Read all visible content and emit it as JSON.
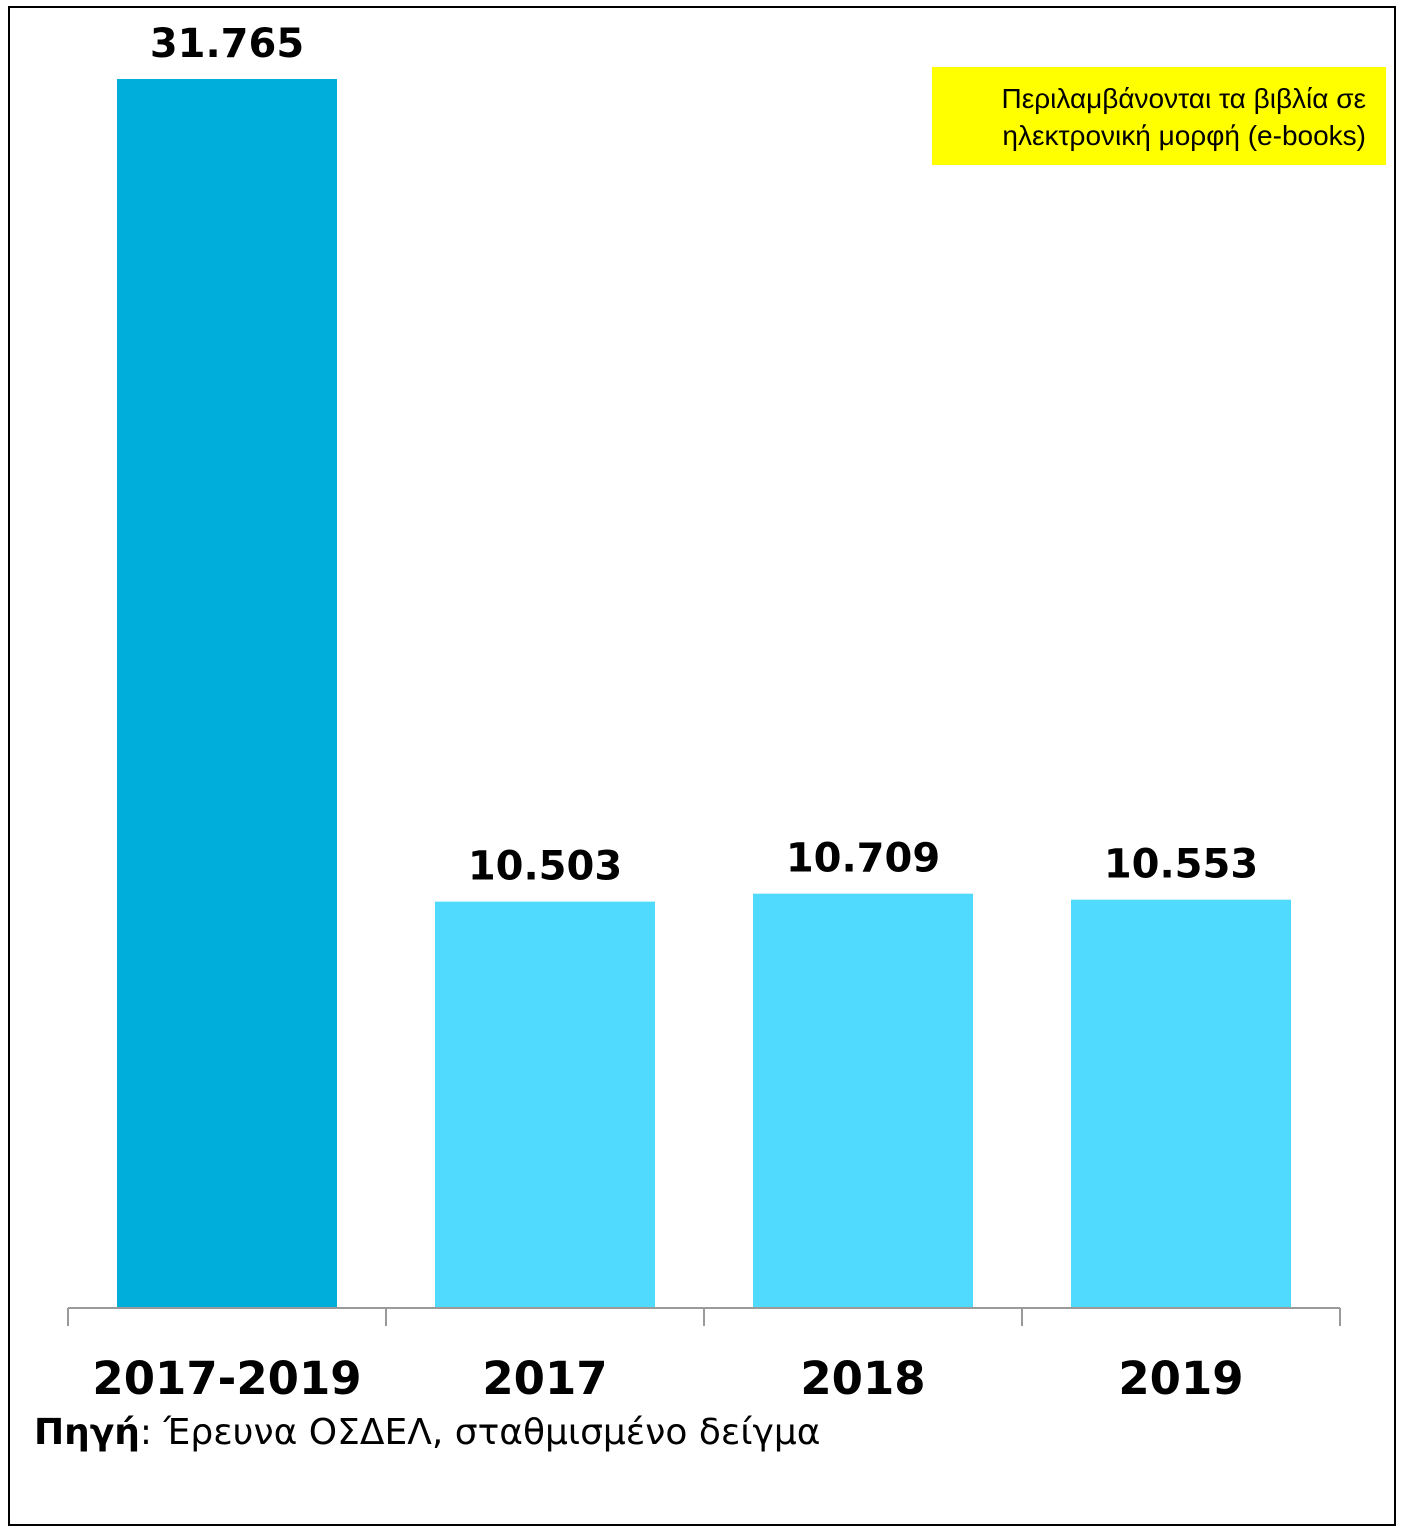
{
  "chart_data": {
    "type": "bar",
    "categories": [
      "2017-2019",
      "2017",
      "2018",
      "2019"
    ],
    "values": [
      31765,
      10503,
      10709,
      10553
    ],
    "value_labels": [
      "31.765",
      "10.503",
      "10.709",
      "10.553"
    ],
    "colors": [
      "#00aedb",
      "#50dafe",
      "#50dafe",
      "#50dafe"
    ],
    "ylim": [
      0,
      31765
    ],
    "grid": false,
    "legend": "none"
  },
  "note": {
    "line1": "Περιλαμβάνονται τα βιβλία σε",
    "line2": "ηλεκτρονική μορφή (e-books)",
    "background": "#ffff00"
  },
  "source": {
    "label": "Πηγή",
    "separator": ": ",
    "text": "Έρευνα ΟΣΔΕΛ, σταθμισμένο δείγμα"
  }
}
